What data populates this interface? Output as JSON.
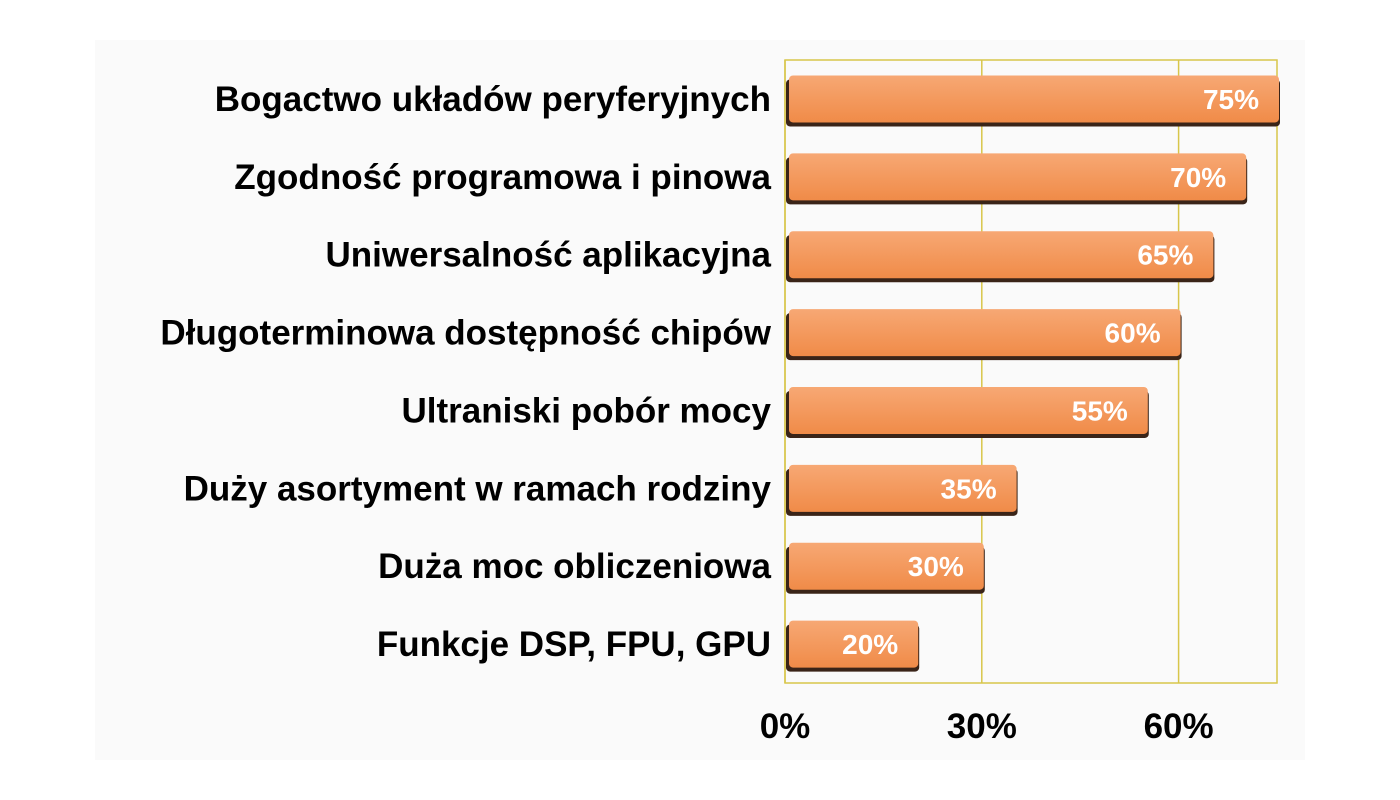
{
  "chart_data": {
    "type": "bar",
    "orientation": "horizontal",
    "categories": [
      "Bogactwo układów peryferyjnych",
      "Zgodność programowa i pinowa",
      "Uniwersalność aplikacyjna",
      "Długoterminowa dostępność chipów",
      "Ultraniski pobór mocy",
      "Duży asortyment w ramach rodziny",
      "Duża moc obliczeniowa",
      "Funkcje DSP, FPU, GPU"
    ],
    "values": [
      75,
      70,
      65,
      60,
      55,
      35,
      30,
      20
    ],
    "data_labels": [
      "75%",
      "70%",
      "65%",
      "60%",
      "55%",
      "35%",
      "30%",
      "20%"
    ],
    "xlim": [
      0,
      75
    ],
    "x_ticks": [
      0,
      30,
      60
    ],
    "x_tick_labels": [
      "0%",
      "30%",
      "60%"
    ],
    "grid": true,
    "legend": "none",
    "colors": {
      "bar": "#f08b48",
      "bar_highlight": "#f7a874",
      "bar_shadow": "#3a2418",
      "grid": "#d8c64a",
      "plot_border": "#d8c64a",
      "background": "#ffffff",
      "plot_background": "#fafafa"
    }
  }
}
